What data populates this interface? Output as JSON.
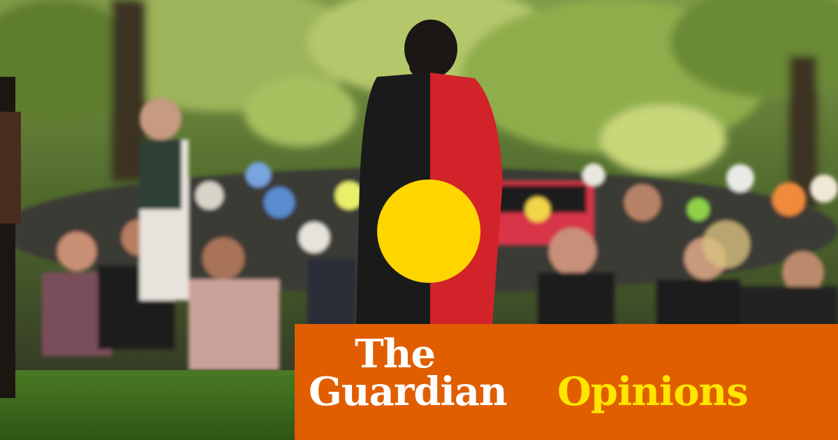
{
  "photo": {
    "subject": "protest-crowd-aboriginal-flag",
    "colors": {
      "flag_black": "#1a1a1a",
      "flag_red": "#d2232a",
      "flag_yellow": "#ffd500",
      "grass": "#3f6b1f",
      "foliage": "#6f8f3a"
    }
  },
  "branding": {
    "masthead_line1": "The",
    "masthead_line2": "Guardian",
    "section": "Opinions",
    "banner_color": "#e05e00",
    "section_color": "#ffe500"
  }
}
